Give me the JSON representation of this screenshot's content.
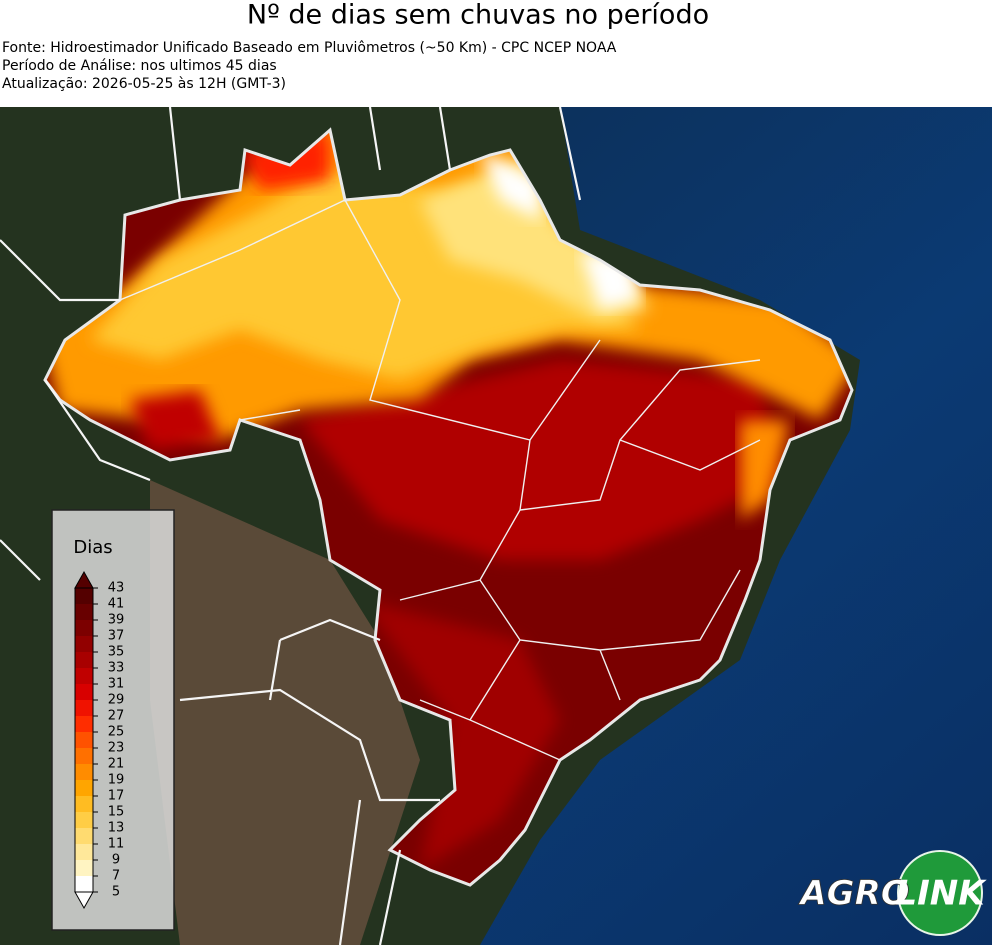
{
  "header": {
    "title": "Nº de dias sem chuvas no período",
    "source": "Fonte: Hidroestimador Unificado Baseado em Pluviômetros (~50 Km) - CPC NCEP NOAA",
    "period": "Período de Análise: nos ultimos 45 dias",
    "update": "Atualização: 2026-05-25 às 12H (GMT-3)"
  },
  "legend": {
    "title": "Dias",
    "ticks": [
      5,
      7,
      9,
      11,
      13,
      15,
      17,
      19,
      21,
      23,
      25,
      27,
      29,
      31,
      33,
      35,
      37,
      39,
      41,
      43
    ],
    "colors": [
      "#ffffff",
      "#fff4c2",
      "#ffe89a",
      "#ffdb70",
      "#ffcd45",
      "#ffbc22",
      "#ffa500",
      "#ff8c00",
      "#ff7000",
      "#ff5200",
      "#ff2d00",
      "#f01200",
      "#d80000",
      "#c00000",
      "#a80000",
      "#920000",
      "#7c0000",
      "#680000",
      "#540000"
    ]
  },
  "logo": {
    "left": "AGRO",
    "right": "LINK"
  }
}
